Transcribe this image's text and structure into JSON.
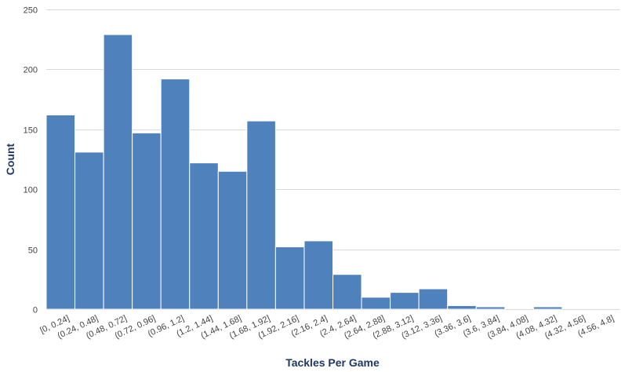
{
  "chart_data": {
    "type": "bar",
    "xlabel": "Tackles Per Game",
    "ylabel": "Count",
    "ylim": [
      0,
      250
    ],
    "yticks": [
      0,
      50,
      100,
      150,
      200,
      250
    ],
    "grid": true,
    "bar_color": "#4f81bd",
    "categories": [
      "[0, 0.24]",
      "(0.24, 0.48]",
      "(0.48, 0.72]",
      "(0.72, 0.96]",
      "(0.96, 1.2]",
      "(1.2, 1.44]",
      "(1.44, 1.68]",
      "(1.68, 1.92]",
      "(1.92, 2.16]",
      "(2.16, 2.4]",
      "(2.4, 2.64]",
      "(2.64, 2.88]",
      "(2.88, 3.12]",
      "(3.12, 3.36]",
      "(3.36, 3.6]",
      "(3.6, 3.84]",
      "(3.84, 4.08]",
      "(4.08, 4.32]",
      "(4.32, 4.56]",
      "(4.56, 4.8]"
    ],
    "values": [
      162,
      131,
      229,
      147,
      192,
      122,
      115,
      157,
      52,
      57,
      29,
      10,
      14,
      17,
      3,
      2,
      0,
      2,
      0,
      0
    ]
  }
}
